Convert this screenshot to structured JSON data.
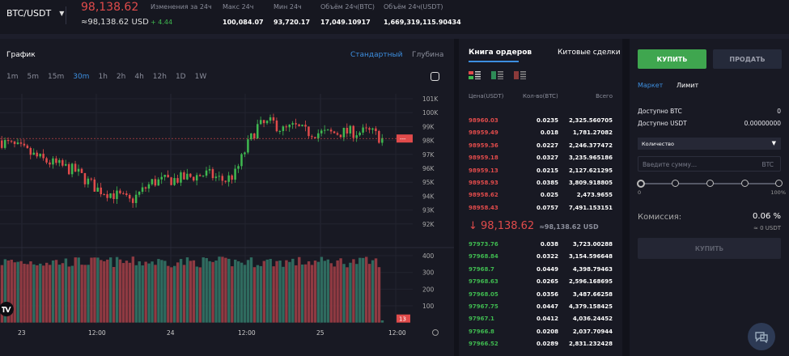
{
  "header": {
    "pair": "BTC/USDT",
    "price": "98,138.62",
    "price_usd": "≈98,138.62 USD",
    "stats": [
      {
        "label": "Изменения за 24ч",
        "value": "+ 4.44",
        "color": "#3fb950"
      },
      {
        "label": "Макс 24ч",
        "value": "100,084.07"
      },
      {
        "label": "Мин 24ч",
        "value": "93,720.17"
      },
      {
        "label": "Объём 24ч(BTC)",
        "value": "17,049.10917"
      },
      {
        "label": "Объём 24ч(USDT)",
        "value": "1,669,319,115.90434"
      }
    ]
  },
  "chart": {
    "title": "График",
    "modes": [
      "Стандартный",
      "Глубина"
    ],
    "timeframes": [
      "1m",
      "5m",
      "15m",
      "30m",
      "1h",
      "2h",
      "4h",
      "12h",
      "1D",
      "1W"
    ],
    "active_timeframe": "30m",
    "price_tag": "---",
    "volume_tag": "13"
  },
  "chart_data": {
    "type": "candlestick",
    "price_ticks": [
      "101K",
      "100K",
      "99K",
      "98K",
      "97K",
      "96K",
      "95K",
      "94K",
      "93K",
      "92K"
    ],
    "tick_values": [
      101,
      100,
      99,
      98,
      97,
      96,
      95,
      94,
      93,
      92
    ],
    "volume_ticks": [
      "400",
      "300",
      "200",
      "100"
    ],
    "volume_tick_values": [
      400,
      300,
      200,
      100
    ],
    "x_labels": [
      "23",
      "12:00",
      "24",
      "12:00",
      "25",
      "12:00"
    ],
    "close_path_k": [
      [
        0,
        98.0
      ],
      [
        10,
        97.4
      ],
      [
        20,
        96.6
      ],
      [
        35,
        95.8
      ],
      [
        45,
        94.5
      ],
      [
        55,
        94.0
      ],
      [
        60,
        93.6
      ],
      [
        70,
        95.0
      ],
      [
        85,
        95.3
      ],
      [
        95,
        95.6
      ],
      [
        103,
        95.1
      ],
      [
        108,
        95.6
      ],
      [
        113,
        97.5
      ],
      [
        118,
        99.0
      ],
      [
        125,
        99.3
      ],
      [
        130,
        98.7
      ],
      [
        135,
        99.0
      ],
      [
        140,
        98.6
      ],
      [
        150,
        98.5
      ],
      [
        160,
        98.6
      ],
      [
        170,
        98.6
      ],
      [
        175,
        98.1
      ]
    ],
    "volume_range": [
      330,
      395
    ],
    "last_volume": 13,
    "current_price_k": 98.14
  },
  "book": {
    "tabs": [
      "Книга ордеров",
      "Китовые сделки"
    ],
    "headers": [
      "Цена(USDT)",
      "Кол-во(BTC)",
      "Всего"
    ],
    "asks": [
      [
        "98960.03",
        "0.0235",
        "2,325.560705"
      ],
      [
        "98959.49",
        "0.018",
        "1,781.27082"
      ],
      [
        "98959.36",
        "0.0227",
        "2,246.377472"
      ],
      [
        "98959.18",
        "0.0327",
        "3,235.965186"
      ],
      [
        "98959.13",
        "0.0215",
        "2,127.621295"
      ],
      [
        "98958.93",
        "0.0385",
        "3,809.918805"
      ],
      [
        "98958.62",
        "0.025",
        "2,473.9655"
      ],
      [
        "98958.43",
        "0.0757",
        "7,491.153151"
      ]
    ],
    "mid_price": "↓ 98,138.62",
    "mid_usd": "≈98,138.62 USD",
    "bids": [
      [
        "97973.76",
        "0.038",
        "3,723.00288"
      ],
      [
        "97968.84",
        "0.0322",
        "3,154.596648"
      ],
      [
        "97968.7",
        "0.0449",
        "4,398.79463"
      ],
      [
        "97968.63",
        "0.0265",
        "2,596.168695"
      ],
      [
        "97968.05",
        "0.0356",
        "3,487.66258"
      ],
      [
        "97967.75",
        "0.0447",
        "4,379.158425"
      ],
      [
        "97967.1",
        "0.0412",
        "4,036.24452"
      ],
      [
        "97966.8",
        "0.0208",
        "2,037.70944"
      ],
      [
        "97966.52",
        "0.0289",
        "2,831.232428"
      ]
    ]
  },
  "trade": {
    "buy": "КУПИТЬ",
    "sell": "ПРОДАТЬ",
    "types": [
      "Маркет",
      "Лимит"
    ],
    "avail_btc_label": "Доступно BTC",
    "avail_btc": "0",
    "avail_usdt_label": "Доступно USDT",
    "avail_usdt": "0.00000000",
    "select": "Количество",
    "amount_placeholder": "Введите сумму...",
    "amount_unit": "BTC",
    "slider_min": "0",
    "slider_max": "100%",
    "slider_value": 0,
    "fee_label": "Комиссия:",
    "fee": "0.06 %",
    "fee_usdt": "≈ 0 USDT",
    "submit": "КУПИТЬ"
  },
  "colors": {
    "up": "#3fb950",
    "down": "#e04b4b",
    "accent": "#3d8fe0"
  }
}
